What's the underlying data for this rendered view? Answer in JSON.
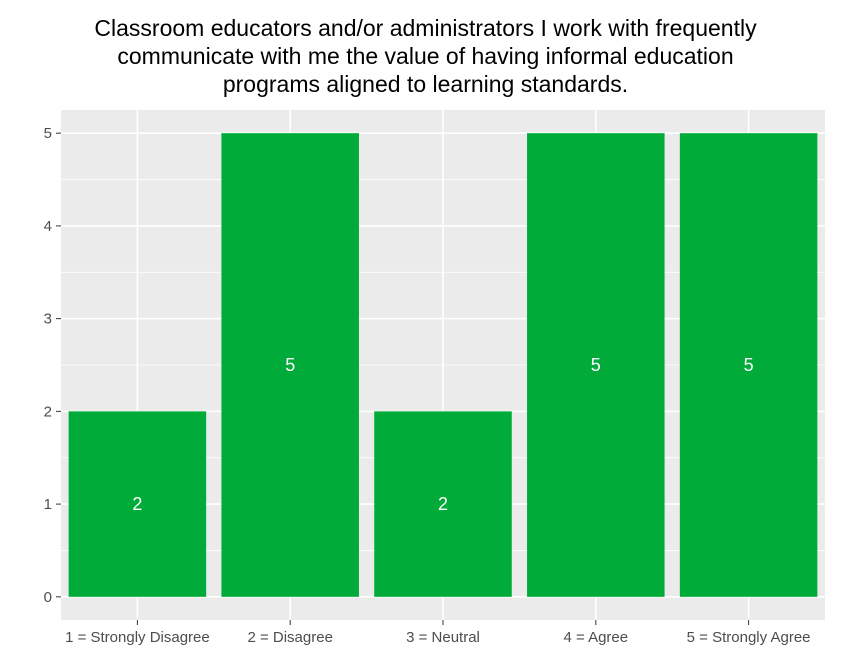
{
  "chart_data": {
    "type": "bar",
    "title_lines": [
      "Classroom educators and/or administrators I work with frequently",
      "communicate with me the value of having informal education",
      "programs aligned to learning standards."
    ],
    "categories": [
      "1 = Strongly Disagree",
      "2 = Disagree",
      "3 = Neutral",
      "4 = Agree",
      "5 = Strongly Agree"
    ],
    "values": [
      2,
      5,
      2,
      5,
      5
    ],
    "data_labels": [
      "2",
      "5",
      "2",
      "5",
      "5"
    ],
    "y_ticks": [
      0,
      1,
      2,
      3,
      4,
      5
    ],
    "ylim": [
      -0.25,
      5.25
    ],
    "xlabel": "",
    "ylabel": "",
    "grid": true,
    "legend": "none",
    "colors": {
      "bar": "#00ab3a",
      "panel_background": "#ebebeb",
      "grid": "#ffffff",
      "tick_text": "#4d4d4d",
      "tick_mark": "#333333",
      "data_label": "#ffffff"
    }
  }
}
